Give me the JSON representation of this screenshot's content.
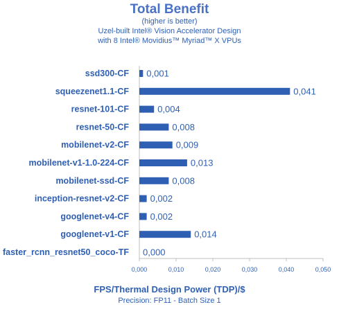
{
  "chart_data": {
    "type": "bar",
    "orientation": "horizontal",
    "title": "Total Benefit",
    "subtitle_lines": [
      "(higher is better)",
      "Uzel-built Intel® Vision Accelerator Design",
      "with 8 Intel® Movidius™ Myriad™ X VPUs"
    ],
    "categories": [
      "ssd300-CF",
      "squeezenet1.1-CF",
      "resnet-101-CF",
      "resnet-50-CF",
      "mobilenet-v2-CF",
      "mobilenet-v1-1.0-224-CF",
      "mobilenet-ssd-CF",
      "inception-resnet-v2-CF",
      "googlenet-v4-CF",
      "googlenet-v1-CF",
      "faster_rcnn_resnet50_coco-TF"
    ],
    "values": [
      0.001,
      0.041,
      0.004,
      0.008,
      0.009,
      0.013,
      0.008,
      0.002,
      0.002,
      0.014,
      0.0
    ],
    "value_labels": [
      "0,001",
      "0,041",
      "0,004",
      "0,008",
      "0,009",
      "0,013",
      "0,008",
      "0,002",
      "0,002",
      "0,014",
      "0,000"
    ],
    "xlim": [
      0,
      0.05
    ],
    "xticks": [
      0,
      0.01,
      0.02,
      0.03,
      0.04,
      0.05
    ],
    "xtick_labels": [
      "0,000",
      "0,010",
      "0,020",
      "0,030",
      "0,040",
      "0,050"
    ],
    "xlabel": "FPS/Thermal Design Power (TDP)/$",
    "note": "Precision: FP11 - Batch Size 1",
    "grid": false,
    "bar_color": "#2f5fb3",
    "text_color": "#2f5fb3",
    "title_color": "#4a72c4"
  }
}
